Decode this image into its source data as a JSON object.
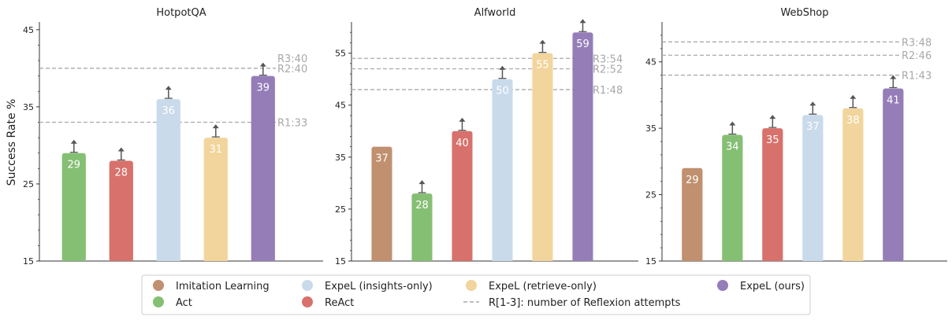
{
  "figure": {
    "ylabel": "Success Rate %",
    "legend": {
      "placement": "bottom",
      "entries": [
        {
          "label": "Imitation Learning",
          "color": "#C0906F",
          "kind": "dot"
        },
        {
          "label": "Act",
          "color": "#85BF73",
          "kind": "dot"
        },
        {
          "label": "ExpeL (insights-only)",
          "color": "#C9DAEB",
          "kind": "dot"
        },
        {
          "label": "ReAct",
          "color": "#D8716B",
          "kind": "dot"
        },
        {
          "label": "ExpeL (retrieve-only)",
          "color": "#F2D59C",
          "kind": "dot"
        },
        {
          "label": "R[1-3]: number of Reflexion attempts",
          "color": "#AAAAAA",
          "kind": "dash"
        },
        {
          "label": "ExpeL (ours)",
          "color": "#957DB8",
          "kind": "dot"
        }
      ]
    }
  },
  "chart_data": [
    {
      "type": "bar",
      "title": "HotpotQA",
      "ylim": [
        15,
        46
      ],
      "yticks": [
        15,
        25,
        35,
        45
      ],
      "grid": false,
      "categories": [
        "Act",
        "ReAct",
        "ExpeL (insights-only)",
        "ExpeL (retrieve-only)",
        "ExpeL (ours)"
      ],
      "values": [
        29,
        28,
        36,
        31,
        39
      ],
      "value_labels": [
        "29",
        "28",
        "36",
        "31",
        "39"
      ],
      "colors": [
        "#85BF73",
        "#D8716B",
        "#C9DAEB",
        "#F2D59C",
        "#957DB8"
      ],
      "arrow": [
        true,
        true,
        true,
        true,
        true
      ],
      "reflexion": [
        {
          "label": "R1:33",
          "value": 33
        },
        {
          "label": "R2:40",
          "value": 40
        },
        {
          "label": "R3:40",
          "value": 40
        }
      ]
    },
    {
      "type": "bar",
      "title": "Alfworld",
      "ylim": [
        15,
        61
      ],
      "yticks": [
        15,
        25,
        35,
        45,
        55
      ],
      "grid": false,
      "categories": [
        "Imitation Learning",
        "Act",
        "ReAct",
        "ExpeL (insights-only)",
        "ExpeL (retrieve-only)",
        "ExpeL (ours)"
      ],
      "values": [
        37,
        28,
        40,
        50,
        55,
        59
      ],
      "value_labels": [
        "37",
        "28",
        "40",
        "50",
        "55",
        "59"
      ],
      "colors": [
        "#C0906F",
        "#85BF73",
        "#D8716B",
        "#C9DAEB",
        "#F2D59C",
        "#957DB8"
      ],
      "arrow": [
        false,
        true,
        true,
        true,
        true,
        true
      ],
      "reflexion": [
        {
          "label": "R1:48",
          "value": 48
        },
        {
          "label": "R2:52",
          "value": 52
        },
        {
          "label": "R3:54",
          "value": 54
        }
      ]
    },
    {
      "type": "bar",
      "title": "WebShop",
      "ylim": [
        15,
        51
      ],
      "yticks": [
        15,
        25,
        35,
        45
      ],
      "grid": false,
      "categories": [
        "Imitation Learning",
        "Act",
        "ReAct",
        "ExpeL (insights-only)",
        "ExpeL (retrieve-only)",
        "ExpeL (ours)"
      ],
      "values": [
        29,
        34,
        35,
        37,
        38,
        41
      ],
      "value_labels": [
        "29",
        "34",
        "35",
        "37",
        "38",
        "41"
      ],
      "colors": [
        "#C0906F",
        "#85BF73",
        "#D8716B",
        "#C9DAEB",
        "#F2D59C",
        "#957DB8"
      ],
      "arrow": [
        false,
        true,
        true,
        true,
        true,
        true
      ],
      "reflexion": [
        {
          "label": "R1:43",
          "value": 43
        },
        {
          "label": "R2:46",
          "value": 46
        },
        {
          "label": "R3:48",
          "value": 48
        }
      ]
    }
  ]
}
